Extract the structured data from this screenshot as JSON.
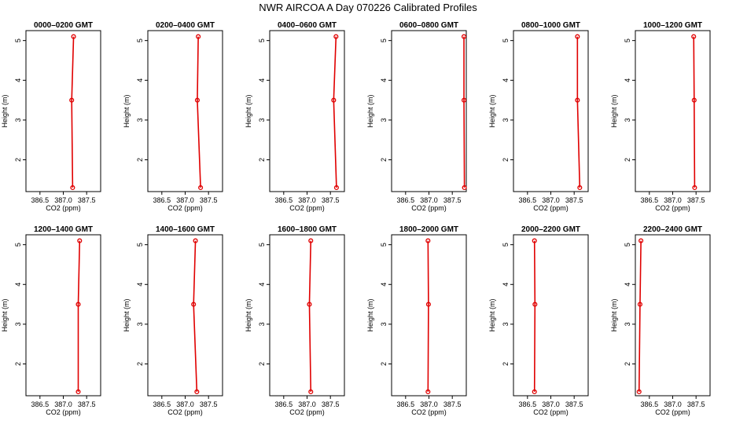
{
  "figure_title": "NWR AIRCOA A  Day 070226  Calibrated Profiles",
  "chart_data": [
    {
      "type": "line",
      "title": "0000–0200 GMT",
      "xlabel": "CO2 (ppm)",
      "ylabel": "Height (m)",
      "x": [
        387.2,
        387.18,
        387.22
      ],
      "y": [
        1.3,
        3.5,
        5.1
      ]
    },
    {
      "type": "line",
      "title": "0200–0400 GMT",
      "xlabel": "CO2 (ppm)",
      "ylabel": "Height (m)",
      "x": [
        387.33,
        387.26,
        387.28
      ],
      "y": [
        1.3,
        3.5,
        5.1
      ]
    },
    {
      "type": "line",
      "title": "0400–0600 GMT",
      "xlabel": "CO2 (ppm)",
      "ylabel": "Height (m)",
      "x": [
        387.63,
        387.57,
        387.62
      ],
      "y": [
        1.3,
        3.5,
        5.1
      ]
    },
    {
      "type": "line",
      "title": "0600–0800 GMT",
      "xlabel": "CO2 (ppm)",
      "ylabel": "Height (m)",
      "x": [
        387.76,
        387.75,
        387.75
      ],
      "y": [
        1.3,
        3.5,
        5.1
      ]
    },
    {
      "type": "line",
      "title": "0800–1000 GMT",
      "xlabel": "CO2 (ppm)",
      "ylabel": "Height (m)",
      "x": [
        387.62,
        387.57,
        387.57
      ],
      "y": [
        1.3,
        3.5,
        5.1
      ]
    },
    {
      "type": "line",
      "title": "1000–1200 GMT",
      "xlabel": "CO2 (ppm)",
      "ylabel": "Height (m)",
      "x": [
        387.47,
        387.46,
        387.45
      ],
      "y": [
        1.3,
        3.5,
        5.1
      ]
    },
    {
      "type": "line",
      "title": "1200–1400 GMT",
      "xlabel": "CO2 (ppm)",
      "ylabel": "Height (m)",
      "x": [
        387.32,
        387.32,
        387.35
      ],
      "y": [
        1.3,
        3.5,
        5.1
      ]
    },
    {
      "type": "line",
      "title": "1400–1600 GMT",
      "xlabel": "CO2 (ppm)",
      "ylabel": "Height (m)",
      "x": [
        387.25,
        387.18,
        387.22
      ],
      "y": [
        1.3,
        3.5,
        5.1
      ]
    },
    {
      "type": "line",
      "title": "1600–1800 GMT",
      "xlabel": "CO2 (ppm)",
      "ylabel": "Height (m)",
      "x": [
        387.08,
        387.05,
        387.08
      ],
      "y": [
        1.3,
        3.5,
        5.1
      ]
    },
    {
      "type": "line",
      "title": "1800–2000 GMT",
      "xlabel": "CO2 (ppm)",
      "ylabel": "Height (m)",
      "x": [
        386.98,
        386.99,
        386.98
      ],
      "y": [
        1.3,
        3.5,
        5.1
      ]
    },
    {
      "type": "line",
      "title": "2000–2200 GMT",
      "xlabel": "CO2 (ppm)",
      "ylabel": "Height (m)",
      "x": [
        386.65,
        386.66,
        386.65
      ],
      "y": [
        1.3,
        3.5,
        5.1
      ]
    },
    {
      "type": "line",
      "title": "2200–2400 GMT",
      "xlabel": "CO2 (ppm)",
      "ylabel": "Height (m)",
      "x": [
        386.28,
        386.3,
        386.32
      ],
      "y": [
        1.3,
        3.5,
        5.1
      ]
    }
  ],
  "axes": {
    "xlim": [
      386.2,
      387.8
    ],
    "ylim": [
      1.2,
      5.25
    ],
    "xticks": [
      386.5,
      387.0,
      387.5
    ],
    "xtick_labels": [
      "386.5",
      "387.0",
      "387.5"
    ],
    "yticks": [
      2,
      3,
      4,
      5
    ],
    "ytick_labels": [
      "2",
      "3",
      "4",
      "5"
    ],
    "grid": false
  },
  "colors": {
    "line": "#e00000",
    "marker": "#e00000",
    "axis": "#000000"
  }
}
